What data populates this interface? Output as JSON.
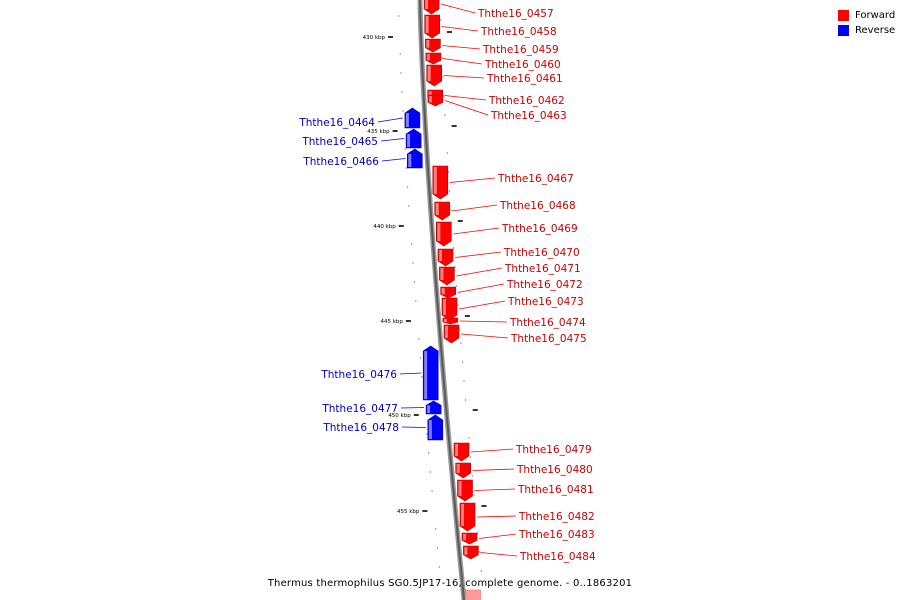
{
  "legend": [
    {
      "label": "Forward",
      "color": "#ff0000"
    },
    {
      "label": "Reverse",
      "color": "#0000ff"
    }
  ],
  "caption": "Thermus thermophilus SG0.5JP17-16, complete genome. - 0..1863201",
  "tick_labels": [
    "430 kbp",
    "435 kbp",
    "440 kbp",
    "445 kbp",
    "450 kbp",
    "455 kbp"
  ],
  "genes": [
    {
      "label": "Ththe16_0457",
      "strand": "forward"
    },
    {
      "label": "Ththe16_0458",
      "strand": "forward"
    },
    {
      "label": "Ththe16_0459",
      "strand": "forward"
    },
    {
      "label": "Ththe16_0460",
      "strand": "forward"
    },
    {
      "label": "Ththe16_0461",
      "strand": "forward"
    },
    {
      "label": "Ththe16_0462",
      "strand": "forward"
    },
    {
      "label": "Ththe16_0463",
      "strand": "forward"
    },
    {
      "label": "Ththe16_0464",
      "strand": "reverse"
    },
    {
      "label": "Ththe16_0465",
      "strand": "reverse"
    },
    {
      "label": "Ththe16_0466",
      "strand": "reverse"
    },
    {
      "label": "Ththe16_0467",
      "strand": "forward"
    },
    {
      "label": "Ththe16_0468",
      "strand": "forward"
    },
    {
      "label": "Ththe16_0469",
      "strand": "forward"
    },
    {
      "label": "Ththe16_0470",
      "strand": "forward"
    },
    {
      "label": "Ththe16_0471",
      "strand": "forward"
    },
    {
      "label": "Ththe16_0472",
      "strand": "forward"
    },
    {
      "label": "Ththe16_0473",
      "strand": "forward"
    },
    {
      "label": "Ththe16_0474",
      "strand": "forward"
    },
    {
      "label": "Ththe16_0475",
      "strand": "forward"
    },
    {
      "label": "Ththe16_0476",
      "strand": "reverse"
    },
    {
      "label": "Ththe16_0477",
      "strand": "reverse"
    },
    {
      "label": "Ththe16_0478",
      "strand": "reverse"
    },
    {
      "label": "Ththe16_0479",
      "strand": "forward"
    },
    {
      "label": "Ththe16_0480",
      "strand": "forward"
    },
    {
      "label": "Ththe16_0481",
      "strand": "forward"
    },
    {
      "label": "Ththe16_0482",
      "strand": "forward"
    },
    {
      "label": "Ththe16_0483",
      "strand": "forward"
    },
    {
      "label": "Ththe16_0484",
      "strand": "forward"
    }
  ]
}
